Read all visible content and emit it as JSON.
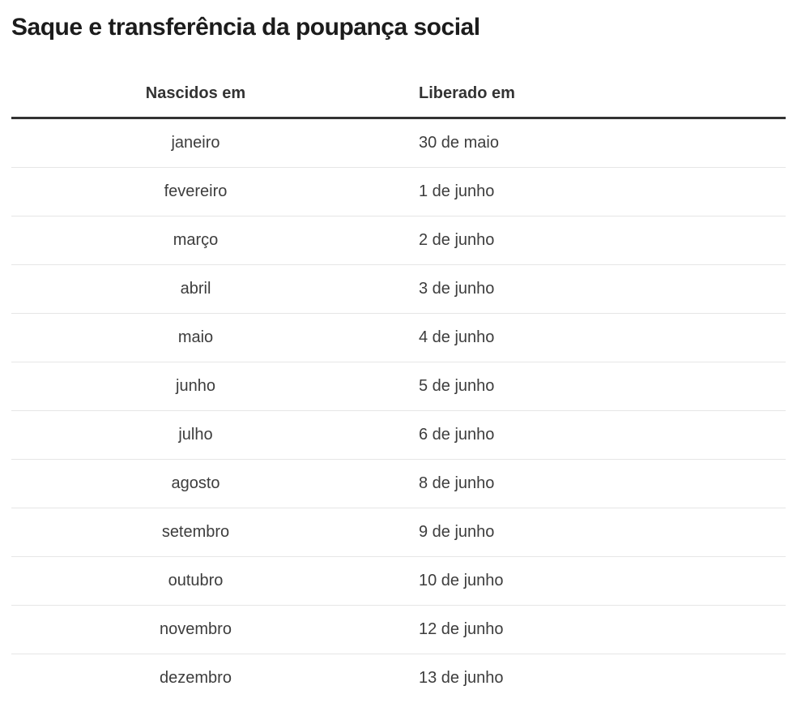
{
  "page": {
    "title": "Saque e transferência da poupança social"
  },
  "chart_data": {
    "type": "table",
    "title": "Saque e transferência da poupança social",
    "columns": [
      "Nascidos em",
      "Liberado em"
    ],
    "rows": [
      [
        "janeiro",
        "30 de maio"
      ],
      [
        "fevereiro",
        "1 de junho"
      ],
      [
        "março",
        "2 de junho"
      ],
      [
        "abril",
        "3 de junho"
      ],
      [
        "maio",
        "4 de junho"
      ],
      [
        "junho",
        "5 de junho"
      ],
      [
        "julho",
        "6 de junho"
      ],
      [
        "agosto",
        "8 de junho"
      ],
      [
        "setembro",
        "9 de junho"
      ],
      [
        "outubro",
        "10 de junho"
      ],
      [
        "novembro",
        "12 de junho"
      ],
      [
        "dezembro",
        "13 de junho"
      ]
    ],
    "layout": {
      "month_column_alignment": "center",
      "date_column_alignment": "left",
      "grid": "horizontal-dividers-only"
    }
  },
  "colors": {
    "background": "#ffffff",
    "title_text": "#1c1c1c",
    "header_text": "#333333",
    "cell_text": "#3d3d3d",
    "header_rule": "#333333",
    "row_divider": "#e6e6e6"
  }
}
